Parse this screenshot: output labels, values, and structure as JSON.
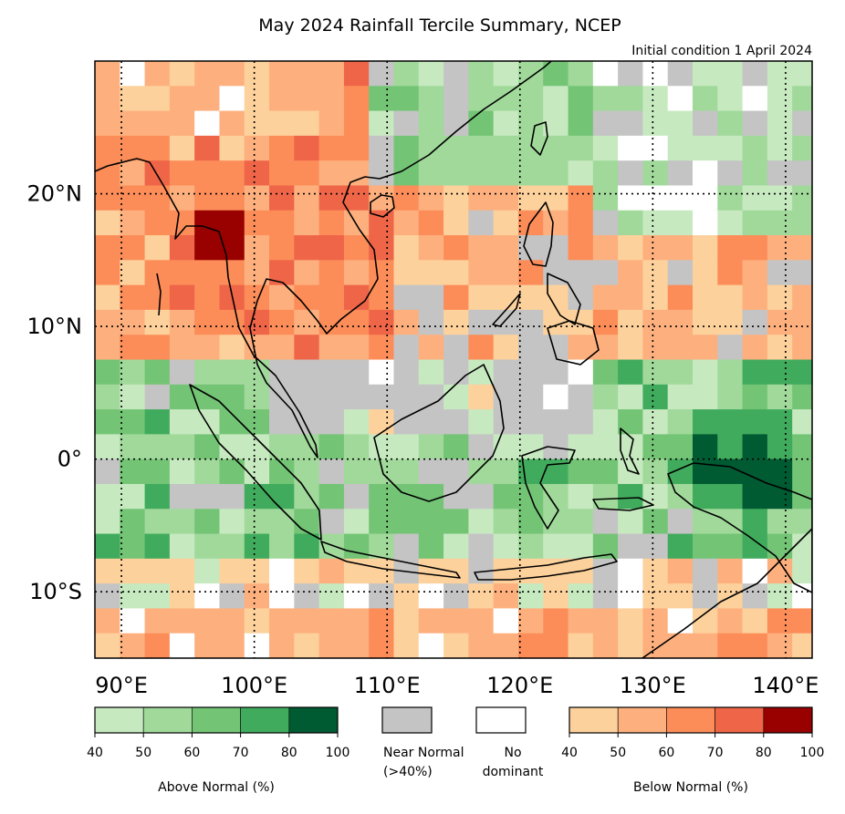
{
  "title": "May 2024 Rainfall Tercile Summary, NCEP",
  "subtitle": "Initial condition 1 April 2024",
  "map": {
    "lon_range": [
      88,
      142
    ],
    "lat_range": [
      -15,
      30
    ],
    "lon_ticks": [
      90,
      100,
      110,
      120,
      130,
      140
    ],
    "lat_ticks": [
      20,
      10,
      0,
      -10
    ],
    "lon_tick_labels": [
      "90°E",
      "100°E",
      "110°E",
      "120°E",
      "130°E",
      "140°E"
    ],
    "lat_tick_labels": [
      "20°N",
      "10°N",
      "0°",
      "10°S"
    ],
    "grid": "dotted",
    "cell_deg": 1.875
  },
  "legend": {
    "above": {
      "label": "Above Normal (%)",
      "ticks": [
        "40",
        "50",
        "60",
        "70",
        "80",
        "100"
      ],
      "colors": [
        "#c7e9c0",
        "#a1d99b",
        "#74c476",
        "#41ab5d",
        "#005a32"
      ]
    },
    "near": {
      "label_line1": "Near Normal",
      "label_line2": "(>40%)",
      "color": "#c4c4c4"
    },
    "nodom": {
      "label_line1": "No",
      "label_line2": "dominant",
      "color": "#ffffff"
    },
    "below": {
      "label": "Below Normal (%)",
      "ticks": [
        "40",
        "50",
        "60",
        "70",
        "80",
        "100"
      ],
      "colors": [
        "#fdd19c",
        "#fdb07e",
        "#fc8d59",
        "#ef6548",
        "#990000"
      ]
    }
  }
}
